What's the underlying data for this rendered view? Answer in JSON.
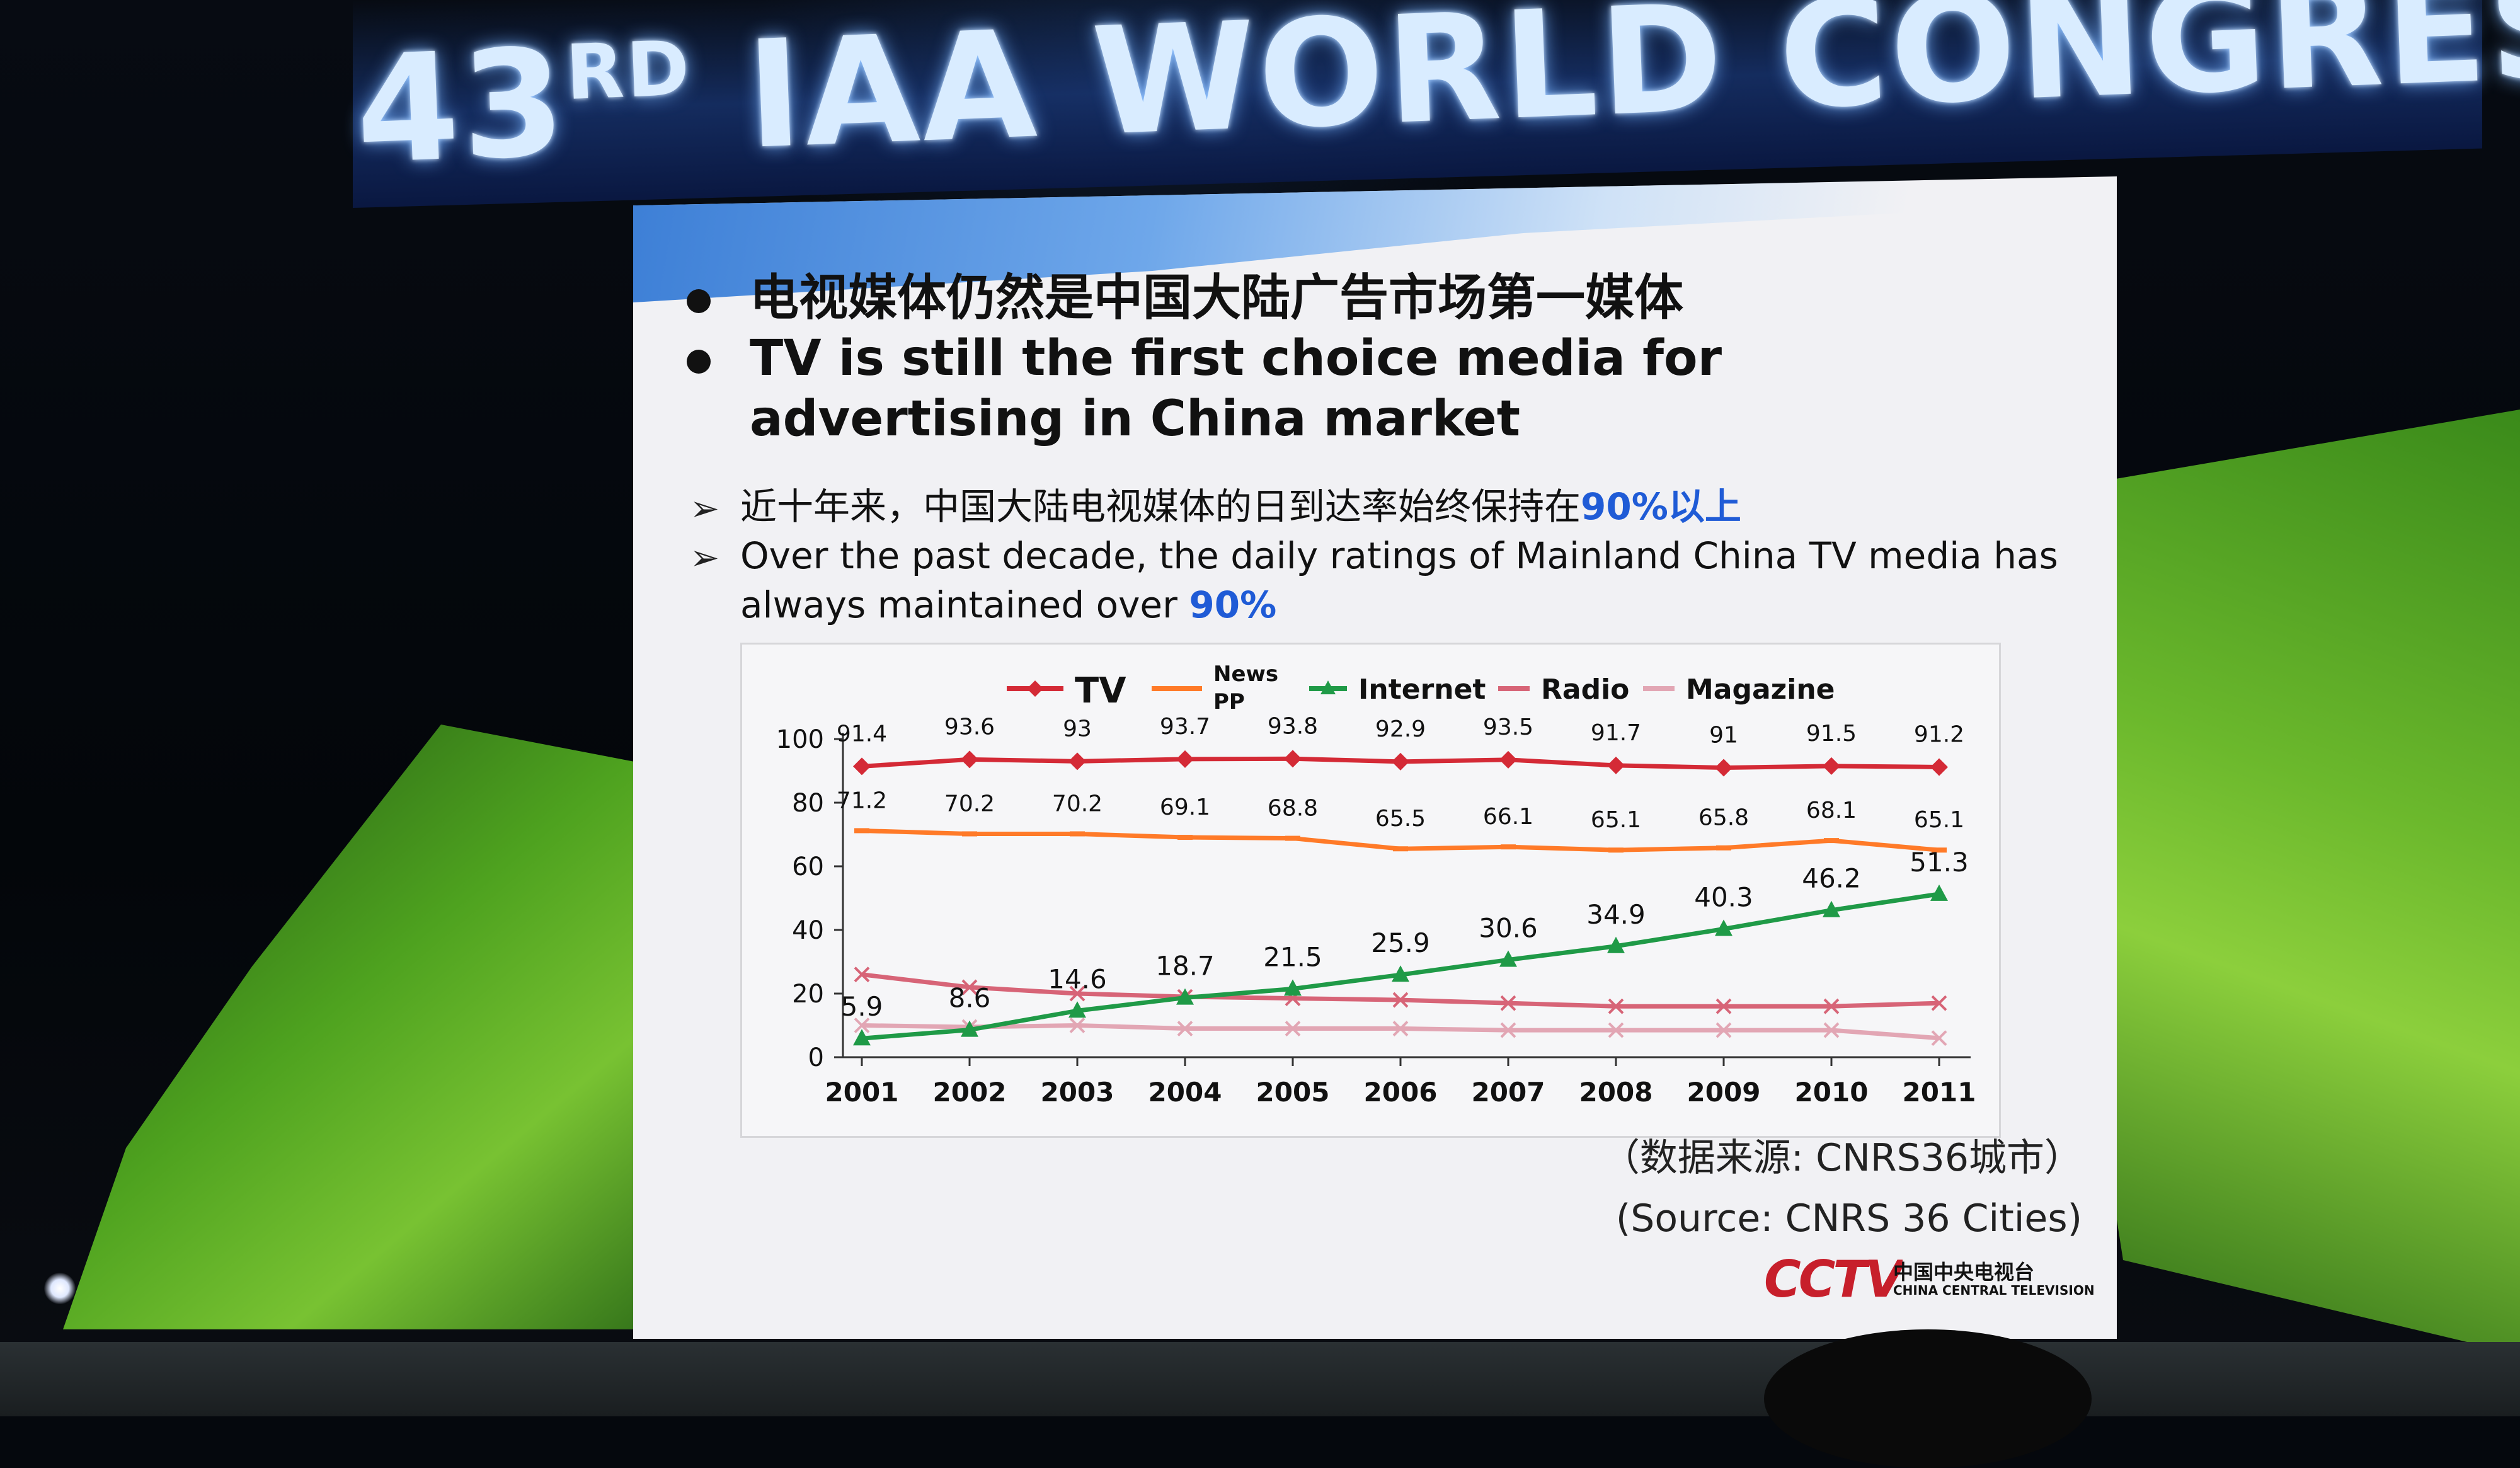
{
  "banner": {
    "title_num": "43",
    "title_sup": "RD",
    "title_rest": " IAA WORLD CONGRESS"
  },
  "slide": {
    "bullets": [
      "电视媒体仍然是中国大陆广告市场第一媒体",
      "TV is still the first choice media for advertising in China market"
    ],
    "sub_cn_prefix": "近十年来，中国大陆电视媒体的日到达率始终保持在",
    "sub_cn_highlight": "90%以上",
    "sub_en_prefix": "Over the past decade, the daily ratings of Mainland China TV media has always maintained over ",
    "sub_en_highlight": "90%",
    "source_cn": "（数据来源: CNRS36城市）",
    "source_en": "(Source: CNRS 36 Cities)",
    "logo_text": "CCTV",
    "logo_cn": "中国中央电视台",
    "logo_en": "CHINA CENTRAL TELEVISION",
    "colors": {
      "highlight": "#1f5bd6",
      "tv": "#d42a36",
      "news_pp": "#ff7a28",
      "internet": "#1f9a47",
      "radio": "#d76477",
      "magazine": "#e2a6b4"
    }
  },
  "chart_data": {
    "type": "line",
    "categories": [
      "2001",
      "2002",
      "2003",
      "2004",
      "2005",
      "2006",
      "2007",
      "2008",
      "2009",
      "2010",
      "2011"
    ],
    "ylim": [
      0,
      100
    ],
    "yticks": [
      "0",
      "20",
      "40",
      "60",
      "80",
      "100"
    ],
    "legend_placement": "top",
    "grid": false,
    "series": [
      {
        "name": "TV",
        "values": [
          91.4,
          93.6,
          93,
          93.7,
          93.8,
          92.9,
          93.5,
          91.7,
          91,
          91.5,
          91.2
        ],
        "labels": [
          "91.4",
          "93.6",
          "93",
          "93.7",
          "93.8",
          "92.9",
          "93.5",
          "91.7",
          "91",
          "91.5",
          "91.2"
        ],
        "color": "#d42a36",
        "marker": "diamond"
      },
      {
        "name": "News PP",
        "values": [
          71.2,
          70.2,
          70.2,
          69.1,
          68.8,
          65.5,
          66.1,
          65.1,
          65.8,
          68.1,
          65.1
        ],
        "labels": [
          "71.2",
          "70.2",
          "70.2",
          "69.1",
          "68.8",
          "65.5",
          "66.1",
          "65.1",
          "65.8",
          "68.1",
          "65.1"
        ],
        "color": "#ff7a28",
        "marker": "dash"
      },
      {
        "name": "Internet",
        "values": [
          5.9,
          8.6,
          14.6,
          18.7,
          21.5,
          25.9,
          30.6,
          34.9,
          40.3,
          46.2,
          51.3
        ],
        "labels": [
          "5.9",
          "8.6",
          "14.6",
          "18.7",
          "21.5",
          "25.9",
          "30.6",
          "34.9",
          "40.3",
          "46.2",
          "51.3"
        ],
        "color": "#1f9a47",
        "marker": "triangle"
      },
      {
        "name": "Radio",
        "values": [
          26,
          22,
          20,
          19,
          18.5,
          18,
          17,
          16,
          16,
          16,
          17
        ],
        "labels": [],
        "color": "#d76477",
        "marker": "x"
      },
      {
        "name": "Magazine",
        "values": [
          10,
          9.5,
          10,
          9,
          9,
          9,
          8.5,
          8.5,
          8.5,
          8.5,
          6
        ],
        "labels": [],
        "color": "#e2a6b4",
        "marker": "x"
      }
    ]
  }
}
